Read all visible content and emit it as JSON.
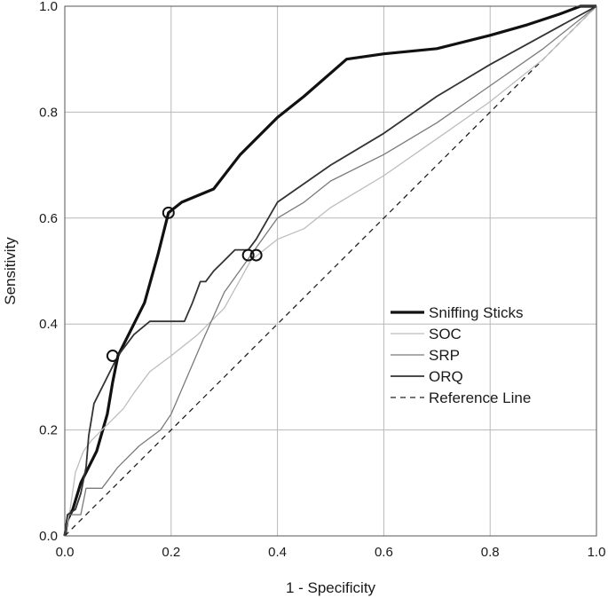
{
  "chart_data": {
    "type": "line",
    "title": "",
    "xlabel": "1 - Specificity",
    "ylabel": "Sensitivity",
    "xlim": [
      0,
      1
    ],
    "ylim": [
      0,
      1
    ],
    "grid": true,
    "legend_position": "right-middle",
    "x_ticks": [
      "0.0",
      "0.2",
      "0.4",
      "0.6",
      "0.8",
      "1.0"
    ],
    "y_ticks": [
      "0.0",
      "0.2",
      "0.4",
      "0.6",
      "0.8",
      "1.0"
    ],
    "series": [
      {
        "name": "Sniffing Sticks",
        "color": "#111111",
        "style": "thick",
        "points": [
          [
            0,
            0
          ],
          [
            0.005,
            0.03
          ],
          [
            0.015,
            0.05
          ],
          [
            0.03,
            0.1
          ],
          [
            0.06,
            0.16
          ],
          [
            0.08,
            0.23
          ],
          [
            0.09,
            0.29
          ],
          [
            0.1,
            0.34
          ],
          [
            0.12,
            0.38
          ],
          [
            0.15,
            0.44
          ],
          [
            0.175,
            0.53
          ],
          [
            0.195,
            0.61
          ],
          [
            0.22,
            0.63
          ],
          [
            0.28,
            0.655
          ],
          [
            0.33,
            0.72
          ],
          [
            0.4,
            0.79
          ],
          [
            0.45,
            0.83
          ],
          [
            0.53,
            0.9
          ],
          [
            0.6,
            0.91
          ],
          [
            0.7,
            0.92
          ],
          [
            0.8,
            0.945
          ],
          [
            0.87,
            0.965
          ],
          [
            0.93,
            0.985
          ],
          [
            0.97,
            1
          ],
          [
            1,
            1
          ]
        ],
        "markers": [
          [
            0.195,
            0.61
          ],
          [
            0.09,
            0.34
          ]
        ]
      },
      {
        "name": "SOC",
        "color": "#bdbdbd",
        "style": "thin",
        "points": [
          [
            0,
            0
          ],
          [
            0.01,
            0.05
          ],
          [
            0.02,
            0.12
          ],
          [
            0.035,
            0.16
          ],
          [
            0.05,
            0.18
          ],
          [
            0.07,
            0.2
          ],
          [
            0.09,
            0.22
          ],
          [
            0.11,
            0.24
          ],
          [
            0.13,
            0.27
          ],
          [
            0.16,
            0.31
          ],
          [
            0.2,
            0.34
          ],
          [
            0.25,
            0.38
          ],
          [
            0.3,
            0.43
          ],
          [
            0.35,
            0.52
          ],
          [
            0.4,
            0.56
          ],
          [
            0.45,
            0.58
          ],
          [
            0.5,
            0.62
          ],
          [
            0.6,
            0.68
          ],
          [
            0.7,
            0.75
          ],
          [
            0.8,
            0.82
          ],
          [
            0.9,
            0.9
          ],
          [
            1,
            1
          ]
        ]
      },
      {
        "name": "SRP",
        "color": "#7a7a7a",
        "style": "thin",
        "points": [
          [
            0,
            0
          ],
          [
            0.005,
            0.04
          ],
          [
            0.03,
            0.04
          ],
          [
            0.04,
            0.09
          ],
          [
            0.07,
            0.09
          ],
          [
            0.1,
            0.13
          ],
          [
            0.14,
            0.17
          ],
          [
            0.18,
            0.2
          ],
          [
            0.2,
            0.23
          ],
          [
            0.23,
            0.3
          ],
          [
            0.26,
            0.37
          ],
          [
            0.3,
            0.46
          ],
          [
            0.35,
            0.53
          ],
          [
            0.4,
            0.6
          ],
          [
            0.45,
            0.63
          ],
          [
            0.5,
            0.67
          ],
          [
            0.6,
            0.72
          ],
          [
            0.7,
            0.78
          ],
          [
            0.8,
            0.85
          ],
          [
            0.9,
            0.92
          ],
          [
            1,
            1
          ]
        ],
        "markers": [
          [
            0.36,
            0.53
          ]
        ]
      },
      {
        "name": "ORQ",
        "color": "#333333",
        "style": "medium",
        "points": [
          [
            0,
            0
          ],
          [
            0.005,
            0.04
          ],
          [
            0.02,
            0.05
          ],
          [
            0.03,
            0.08
          ],
          [
            0.04,
            0.13
          ],
          [
            0.045,
            0.19
          ],
          [
            0.05,
            0.22
          ],
          [
            0.055,
            0.25
          ],
          [
            0.065,
            0.27
          ],
          [
            0.075,
            0.29
          ],
          [
            0.085,
            0.31
          ],
          [
            0.1,
            0.34
          ],
          [
            0.13,
            0.38
          ],
          [
            0.16,
            0.405
          ],
          [
            0.2,
            0.405
          ],
          [
            0.225,
            0.405
          ],
          [
            0.24,
            0.44
          ],
          [
            0.255,
            0.48
          ],
          [
            0.265,
            0.48
          ],
          [
            0.28,
            0.5
          ],
          [
            0.3,
            0.52
          ],
          [
            0.32,
            0.54
          ],
          [
            0.345,
            0.54
          ],
          [
            0.36,
            0.56
          ],
          [
            0.4,
            0.63
          ],
          [
            0.5,
            0.7
          ],
          [
            0.6,
            0.76
          ],
          [
            0.7,
            0.83
          ],
          [
            0.8,
            0.89
          ],
          [
            0.9,
            0.945
          ],
          [
            1,
            1
          ]
        ],
        "markers": [
          [
            0.345,
            0.53
          ]
        ]
      },
      {
        "name": "Reference Line",
        "color": "#222222",
        "style": "dashed",
        "points": [
          [
            0,
            0
          ],
          [
            1,
            1
          ]
        ]
      }
    ]
  }
}
